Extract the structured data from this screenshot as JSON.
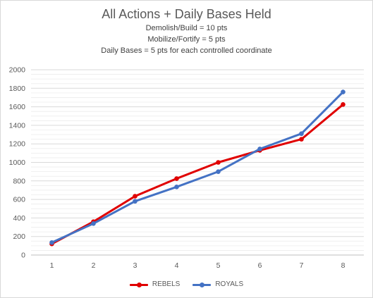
{
  "chart_data": {
    "type": "line",
    "title": "All Actions + Daily Bases Held",
    "subtitles": [
      "Demolish/Build = 10 pts",
      "Mobilize/Fortify = 5 pts",
      "Daily Bases = 5 pts for each controlled coordinate"
    ],
    "xlabel": "",
    "ylabel": "",
    "categories": [
      "1",
      "2",
      "3",
      "4",
      "5",
      "6",
      "7",
      "8"
    ],
    "ylim": [
      0,
      2000
    ],
    "yticks": [
      0,
      200,
      400,
      600,
      800,
      1000,
      1200,
      1400,
      1600,
      1800,
      2000
    ],
    "minor_grid_step": 50,
    "grid": true,
    "legend_position": "bottom",
    "series": [
      {
        "name": "REBELS",
        "color": "#e00000",
        "values": [
          120,
          360,
          635,
          825,
          1000,
          1130,
          1250,
          1625
        ]
      },
      {
        "name": "ROYALS",
        "color": "#4472c4",
        "values": [
          135,
          340,
          580,
          735,
          900,
          1145,
          1310,
          1760
        ]
      }
    ]
  }
}
